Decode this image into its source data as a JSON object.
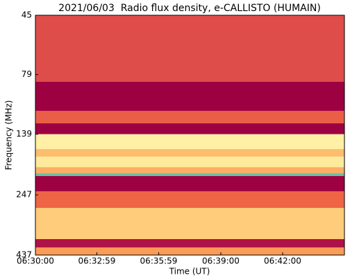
{
  "chart_data": {
    "type": "spectrogram",
    "title": "2021/06/03  Radio flux density, e-CALLISTO (HUMAIN)",
    "xlabel": "Time (UT)",
    "ylabel": "Frequency (MHz)",
    "xlim": [
      "06:30:00",
      "06:45:00"
    ],
    "xticks": [
      "06:30:00",
      "06:32:59",
      "06:35:59",
      "06:39:00",
      "06:42:00"
    ],
    "ylim": [
      45,
      437
    ],
    "yticks": [
      45,
      79,
      139,
      247,
      437
    ],
    "log_y": true,
    "y_inverted": true,
    "edges": [
      45,
      84.5,
      111.4,
      125.4,
      139,
      160,
      172,
      190,
      201,
      206.6,
      238.8,
      279.5,
      375.7,
      406.5,
      437
    ],
    "values": [
      0.22,
      0.0,
      0.28,
      0.0,
      0.75,
      0.55,
      0.72,
      0.5,
      1.0,
      0.0,
      0.3,
      0.6,
      0.05,
      0.45
    ],
    "colormap": [
      "#9e0142",
      "#d53e4f",
      "#f46d43",
      "#fdae61",
      "#fee08b",
      "#ffffbf",
      "#66c2a5"
    ]
  }
}
